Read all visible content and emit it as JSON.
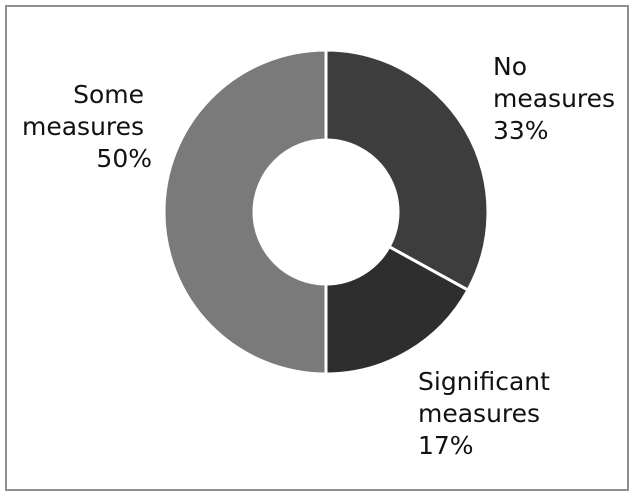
{
  "chart_data": {
    "type": "pie",
    "donut": true,
    "title": "",
    "slices": [
      {
        "label_lines": [
          "No",
          "measures"
        ],
        "percent_label": "33%",
        "value": 33,
        "color": "#3d3d3d"
      },
      {
        "label_lines": [
          "Significant",
          "measures"
        ],
        "percent_label": "17%",
        "value": 17,
        "color": "#2e2e2e"
      },
      {
        "label_lines": [
          "Some",
          "measures"
        ],
        "percent_label": "50%",
        "value": 50,
        "color": "#7a7a7a"
      }
    ],
    "start_angle": "12 o'clock",
    "direction": "clockwise",
    "legend": "none"
  }
}
